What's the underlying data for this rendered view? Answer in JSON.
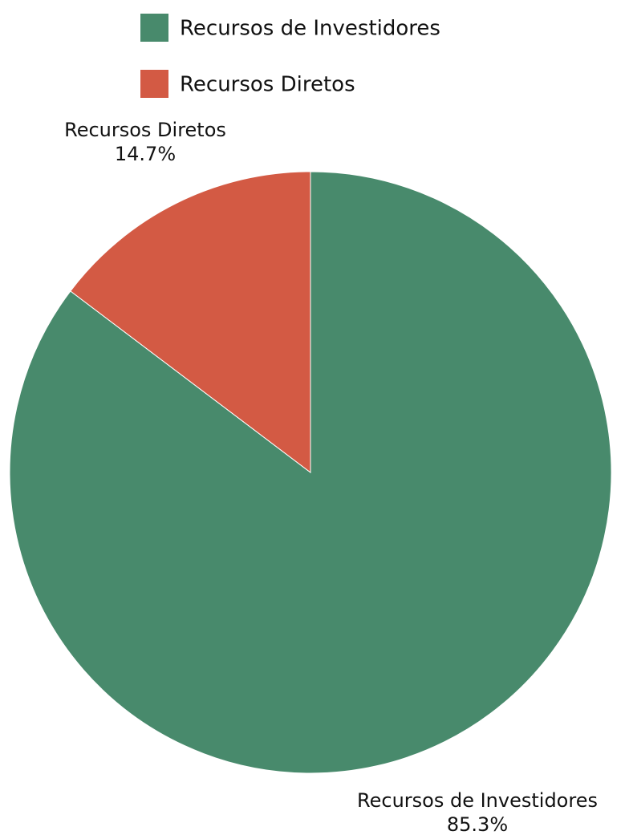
{
  "chart_data": {
    "type": "pie",
    "series": [
      {
        "name": "Recursos de Investidores",
        "value": 85.3,
        "label_percent": "85.3%",
        "color": "#488a6c"
      },
      {
        "name": "Recursos Diretos",
        "value": 14.7,
        "label_percent": "14.7%",
        "color": "#d35a44"
      }
    ],
    "legend": {
      "placement": "top",
      "entries": [
        "Recursos de Investidores",
        "Recursos Diretos"
      ]
    }
  }
}
